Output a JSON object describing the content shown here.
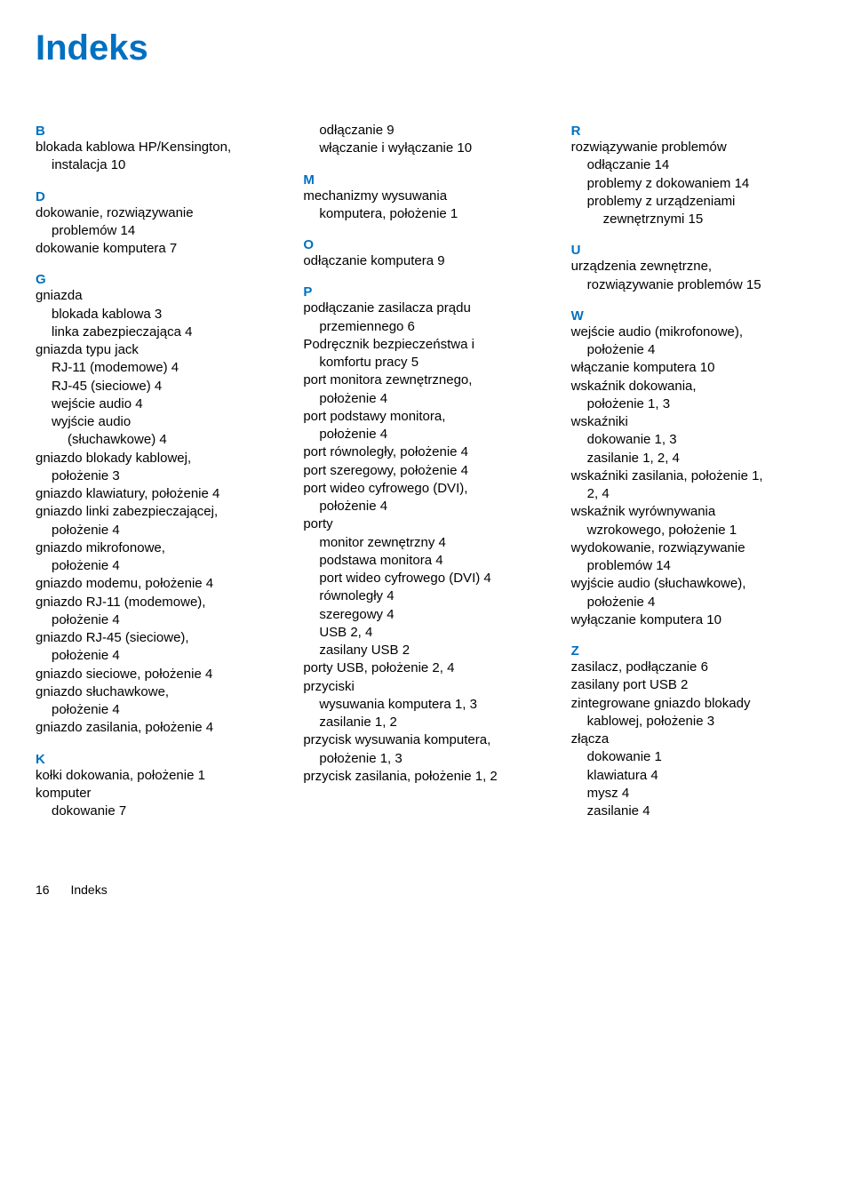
{
  "title": "Indeks",
  "footer": {
    "page_num": "16",
    "section": "Indeks"
  },
  "col1": {
    "B": {
      "letter": "B",
      "e1": "blokada kablowa HP/Kensington,",
      "e1b": "instalacja   10"
    },
    "D": {
      "letter": "D",
      "e1": "dokowanie, rozwiązywanie",
      "e1b": "problemów   14",
      "e2": "dokowanie komputera   7"
    },
    "G": {
      "letter": "G",
      "e1": "gniazda",
      "e1a": "blokada kablowa   3",
      "e1b": "linka zabezpieczająca   4",
      "e2": "gniazda typu jack",
      "e2a": "RJ-11 (modemowe)   4",
      "e2b": "RJ-45 (sieciowe)   4",
      "e2c": "wejście audio   4",
      "e2d": "wyjście audio",
      "e2d2": "(słuchawkowe)   4",
      "e3": "gniazdo blokady kablowej,",
      "e3a": "położenie   3",
      "e4": "gniazdo klawiatury, położenie   4",
      "e5": "gniazdo linki zabezpieczającej,",
      "e5a": "położenie   4",
      "e6": "gniazdo mikrofonowe,",
      "e6a": "położenie   4",
      "e7": "gniazdo modemu, położenie   4",
      "e8": "gniazdo RJ-11 (modemowe),",
      "e8a": "położenie   4",
      "e9": "gniazdo RJ-45 (sieciowe),",
      "e9a": "położenie   4",
      "e10": "gniazdo sieciowe, położenie   4",
      "e11": "gniazdo słuchawkowe,",
      "e11a": "położenie   4",
      "e12": "gniazdo zasilania, położenie   4"
    },
    "K": {
      "letter": "K",
      "e1": "kołki dokowania, położenie   1",
      "e2": "komputer",
      "e2a": "dokowanie   7"
    }
  },
  "col2": {
    "top": {
      "e1": "odłączanie   9",
      "e2": "włączanie i wyłączanie   10"
    },
    "M": {
      "letter": "M",
      "e1": "mechanizmy wysuwania",
      "e1a": "komputera, położenie   1"
    },
    "O": {
      "letter": "O",
      "e1": "odłączanie komputera   9"
    },
    "P": {
      "letter": "P",
      "e1": "podłączanie zasilacza prądu",
      "e1a": "przemiennego   6",
      "e2": "Podręcznik bezpieczeństwa i",
      "e2a": "komfortu pracy   5",
      "e3": "port monitora zewnętrznego,",
      "e3a": "położenie   4",
      "e4": "port podstawy monitora,",
      "e4a": "położenie   4",
      "e5": "port równoległy, położenie   4",
      "e6": "port szeregowy, położenie   4",
      "e7": "port wideo cyfrowego (DVI),",
      "e7a": "położenie   4",
      "e8": "porty",
      "e8a": "monitor zewnętrzny   4",
      "e8b": "podstawa monitora   4",
      "e8c": "port wideo cyfrowego (DVI)   4",
      "e8d": "równoległy   4",
      "e8e": "szeregowy   4",
      "e8f": "USB   2, 4",
      "e8g": "zasilany USB   2",
      "e9": "porty USB, położenie   2, 4",
      "e10": "przyciski",
      "e10a": "wysuwania komputera   1, 3",
      "e10b": "zasilanie   1, 2",
      "e11": "przycisk wysuwania komputera,",
      "e11a": "położenie   1, 3",
      "e12": "przycisk zasilania, położenie   1, 2"
    }
  },
  "col3": {
    "R": {
      "letter": "R",
      "e1": "rozwiązywanie problemów",
      "e1a": "odłączanie   14",
      "e1b": "problemy z dokowaniem   14",
      "e1c": "problemy z urządzeniami",
      "e1c2": "zewnętrznymi   15"
    },
    "U": {
      "letter": "U",
      "e1": "urządzenia zewnętrzne,",
      "e1a": "rozwiązywanie problemów   15"
    },
    "W": {
      "letter": "W",
      "e1": "wejście audio (mikrofonowe),",
      "e1a": "położenie   4",
      "e2": "włączanie komputera   10",
      "e3": "wskaźnik dokowania,",
      "e3a": "położenie   1, 3",
      "e4": "wskaźniki",
      "e4a": "dokowanie   1, 3",
      "e4b": "zasilanie   1, 2, 4",
      "e5": "wskaźniki zasilania, położenie   1,",
      "e5a": "2, 4",
      "e6": "wskaźnik wyrównywania",
      "e6a": "wzrokowego, położenie   1",
      "e7": "wydokowanie, rozwiązywanie",
      "e7a": "problemów   14",
      "e8": "wyjście audio (słuchawkowe),",
      "e8a": "położenie   4",
      "e9": "wyłączanie komputera   10"
    },
    "Z": {
      "letter": "Z",
      "e1": "zasilacz, podłączanie   6",
      "e2": "zasilany port USB   2",
      "e3": "zintegrowane gniazdo blokady",
      "e3a": "kablowej, położenie   3",
      "e4": "złącza",
      "e4a": "dokowanie   1",
      "e4b": "klawiatura   4",
      "e4c": "mysz   4",
      "e4d": "zasilanie   4"
    }
  }
}
